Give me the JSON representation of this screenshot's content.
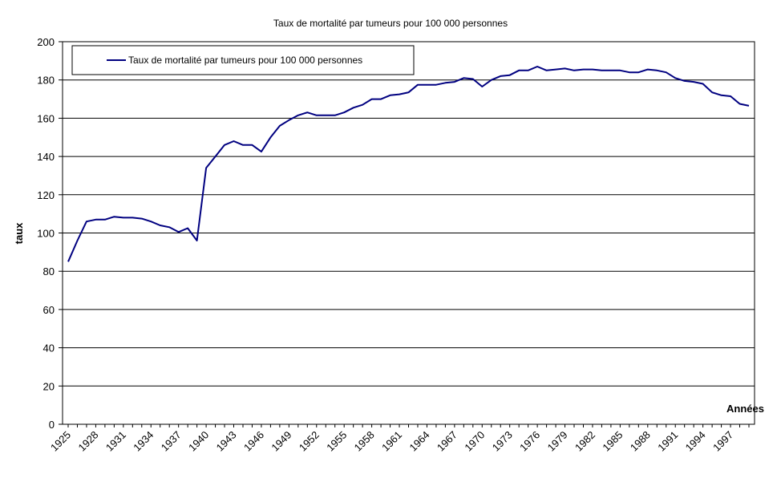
{
  "chart_data": {
    "type": "line",
    "title": "Taux de mortalité par tumeurs pour 100 000 personnes",
    "xlabel": "Années",
    "ylabel": "taux",
    "ylim": [
      0,
      200
    ],
    "yticks": [
      0,
      20,
      40,
      60,
      80,
      100,
      120,
      140,
      160,
      180,
      200
    ],
    "xlim": [
      1925,
      1999
    ],
    "xticks": [
      1925,
      1928,
      1931,
      1934,
      1937,
      1940,
      1943,
      1946,
      1949,
      1952,
      1955,
      1958,
      1961,
      1964,
      1967,
      1970,
      1973,
      1976,
      1979,
      1982,
      1985,
      1988,
      1991,
      1994,
      1997
    ],
    "grid": "horizontal",
    "legend": {
      "placement": "top-left",
      "entries": [
        "Taux de mortalité par tumeurs pour 100 000 personnes"
      ]
    },
    "colors": {
      "series": "#000080",
      "grid": "#000000",
      "background": "#ffffff"
    },
    "x": [
      1925,
      1926,
      1927,
      1928,
      1929,
      1930,
      1931,
      1932,
      1933,
      1934,
      1935,
      1936,
      1937,
      1938,
      1939,
      1940,
      1941,
      1942,
      1943,
      1944,
      1945,
      1946,
      1947,
      1948,
      1949,
      1950,
      1951,
      1952,
      1953,
      1954,
      1955,
      1956,
      1957,
      1958,
      1959,
      1960,
      1961,
      1962,
      1963,
      1964,
      1965,
      1966,
      1967,
      1968,
      1969,
      1970,
      1971,
      1972,
      1973,
      1974,
      1975,
      1976,
      1977,
      1978,
      1979,
      1980,
      1981,
      1982,
      1983,
      1984,
      1985,
      1986,
      1987,
      1988,
      1989,
      1990,
      1991,
      1992,
      1993,
      1994,
      1995,
      1996,
      1997,
      1998,
      1999
    ],
    "series": [
      {
        "name": "Taux de mortalité par tumeurs pour 100 000 personnes",
        "values": [
          85,
          96,
          106,
          107,
          107,
          108.5,
          108,
          108,
          107.5,
          106,
          104,
          103,
          100.5,
          102.5,
          96,
          134,
          140,
          146,
          148,
          146,
          146,
          142.5,
          150,
          156,
          159,
          161.5,
          163,
          161.5,
          161.5,
          161.5,
          163,
          165.5,
          167,
          170,
          170,
          172,
          172.5,
          173.5,
          177.5,
          177.5,
          177.5,
          178.5,
          179,
          181,
          180.5,
          176.5,
          180,
          182,
          182.5,
          185,
          185,
          187,
          185,
          185.5,
          186,
          185,
          185.5,
          185.5,
          185,
          185,
          185,
          184,
          184,
          185.5,
          185,
          184,
          181,
          179.5,
          179,
          178,
          173.5,
          172,
          171.5,
          167.5,
          166.5
        ]
      }
    ]
  }
}
